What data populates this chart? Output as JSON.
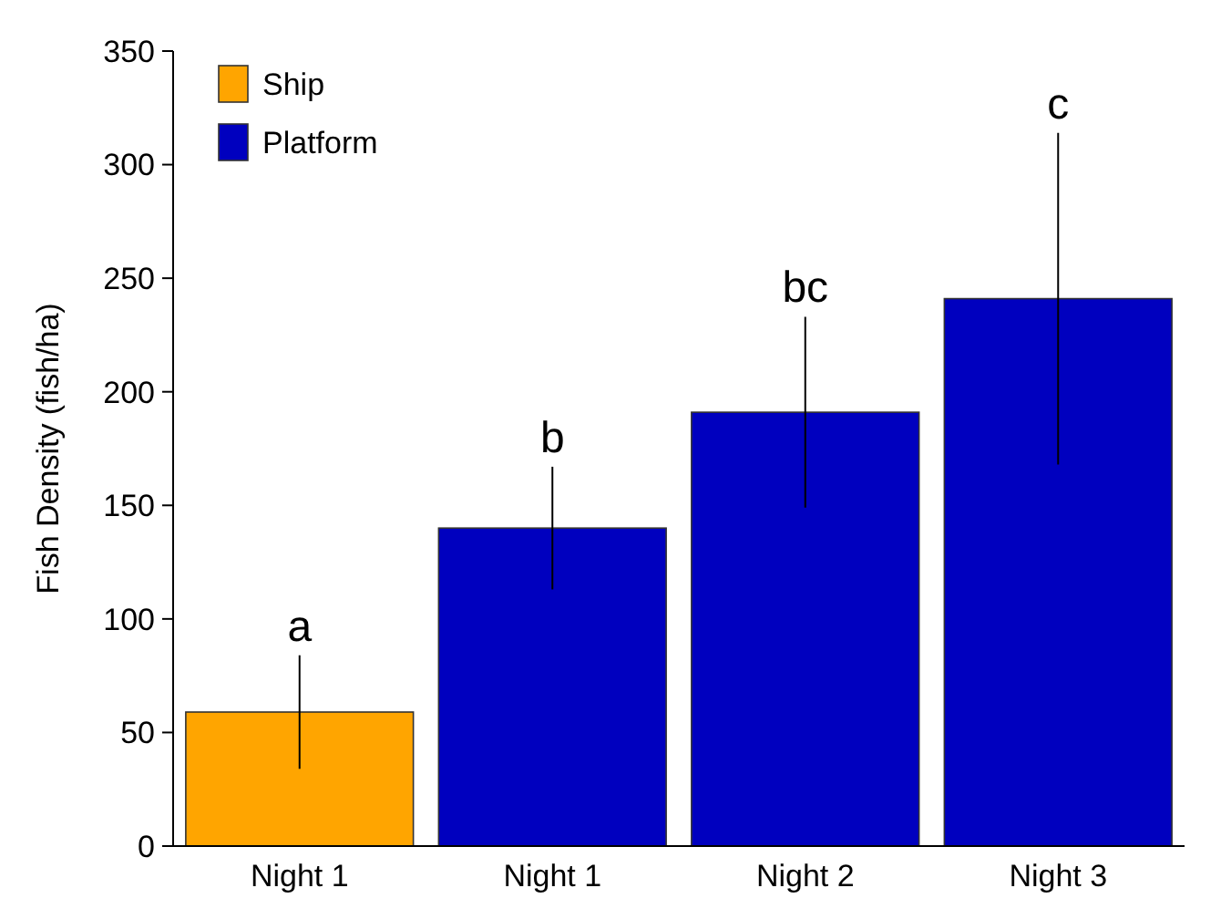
{
  "chart_data": {
    "type": "bar",
    "ylabel": "Fish Density (fish/ha)",
    "categories": [
      "Night 1",
      "Night 1",
      "Night 2",
      "Night 3"
    ],
    "series": [
      {
        "name": "Ship",
        "color": "#ffa500",
        "values": [
          59,
          null,
          null,
          null
        ],
        "errors": [
          25,
          null,
          null,
          null
        ]
      },
      {
        "name": "Platform",
        "color": "#0000bf",
        "values": [
          null,
          140,
          191,
          241
        ],
        "errors": [
          null,
          27,
          42,
          73
        ]
      }
    ],
    "ylim": [
      0,
      350
    ],
    "yticks": [
      0,
      50,
      100,
      150,
      200,
      250,
      300,
      350
    ],
    "grid": false,
    "legend": "top left",
    "annotations": [
      "a",
      "b",
      "bc",
      "c"
    ]
  }
}
